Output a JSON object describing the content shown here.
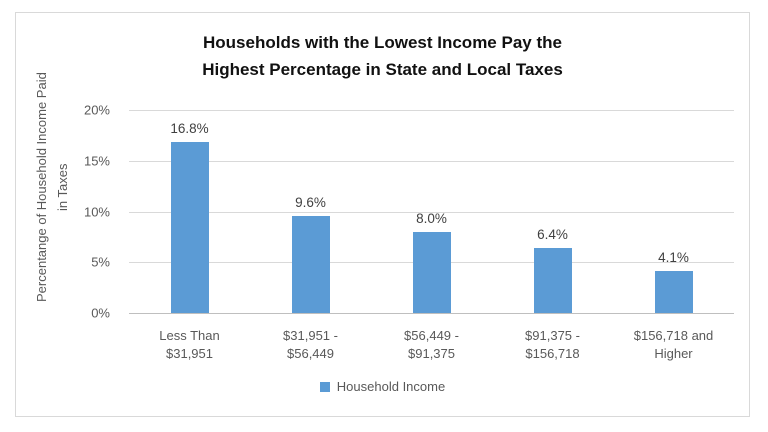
{
  "chart_data": {
    "type": "bar",
    "title": "Households with the Lowest Income Pay the Highest Percentage in State and Local Taxes",
    "title_lines": [
      "Households with the Lowest Income Pay the",
      "Highest Percentage in State and Local Taxes"
    ],
    "ylabel": "Percentange of Household Income Paid\nin Taxes",
    "xlabel": "",
    "categories": [
      "Less Than\n$31,951",
      "$31,951 -\n$56,449",
      "$56,449 -\n$91,375",
      "$91,375 -\n$156,718",
      "$156,718 and\nHigher"
    ],
    "series": [
      {
        "name": "Household Income",
        "values": [
          16.8,
          9.6,
          8.0,
          6.4,
          4.1
        ],
        "color": "#5B9BD5"
      }
    ],
    "data_labels": [
      "16.8%",
      "9.6%",
      "8.0%",
      "6.4%",
      "4.1%"
    ],
    "ylim": [
      0,
      20
    ],
    "yticks": [
      0,
      5,
      10,
      15,
      20
    ],
    "ytick_labels": [
      "0%",
      "5%",
      "10%",
      "15%",
      "20%"
    ],
    "grid": true,
    "legend_position": "bottom"
  },
  "colors": {
    "bar": "#5B9BD5",
    "gridline": "#D9D9D9",
    "axis_line": "#BFBFBF",
    "axis_text": "#595959",
    "data_label": "#404040",
    "title_text": "#111111",
    "frame_border": "#D9D9D9",
    "background": "#FFFFFF"
  }
}
